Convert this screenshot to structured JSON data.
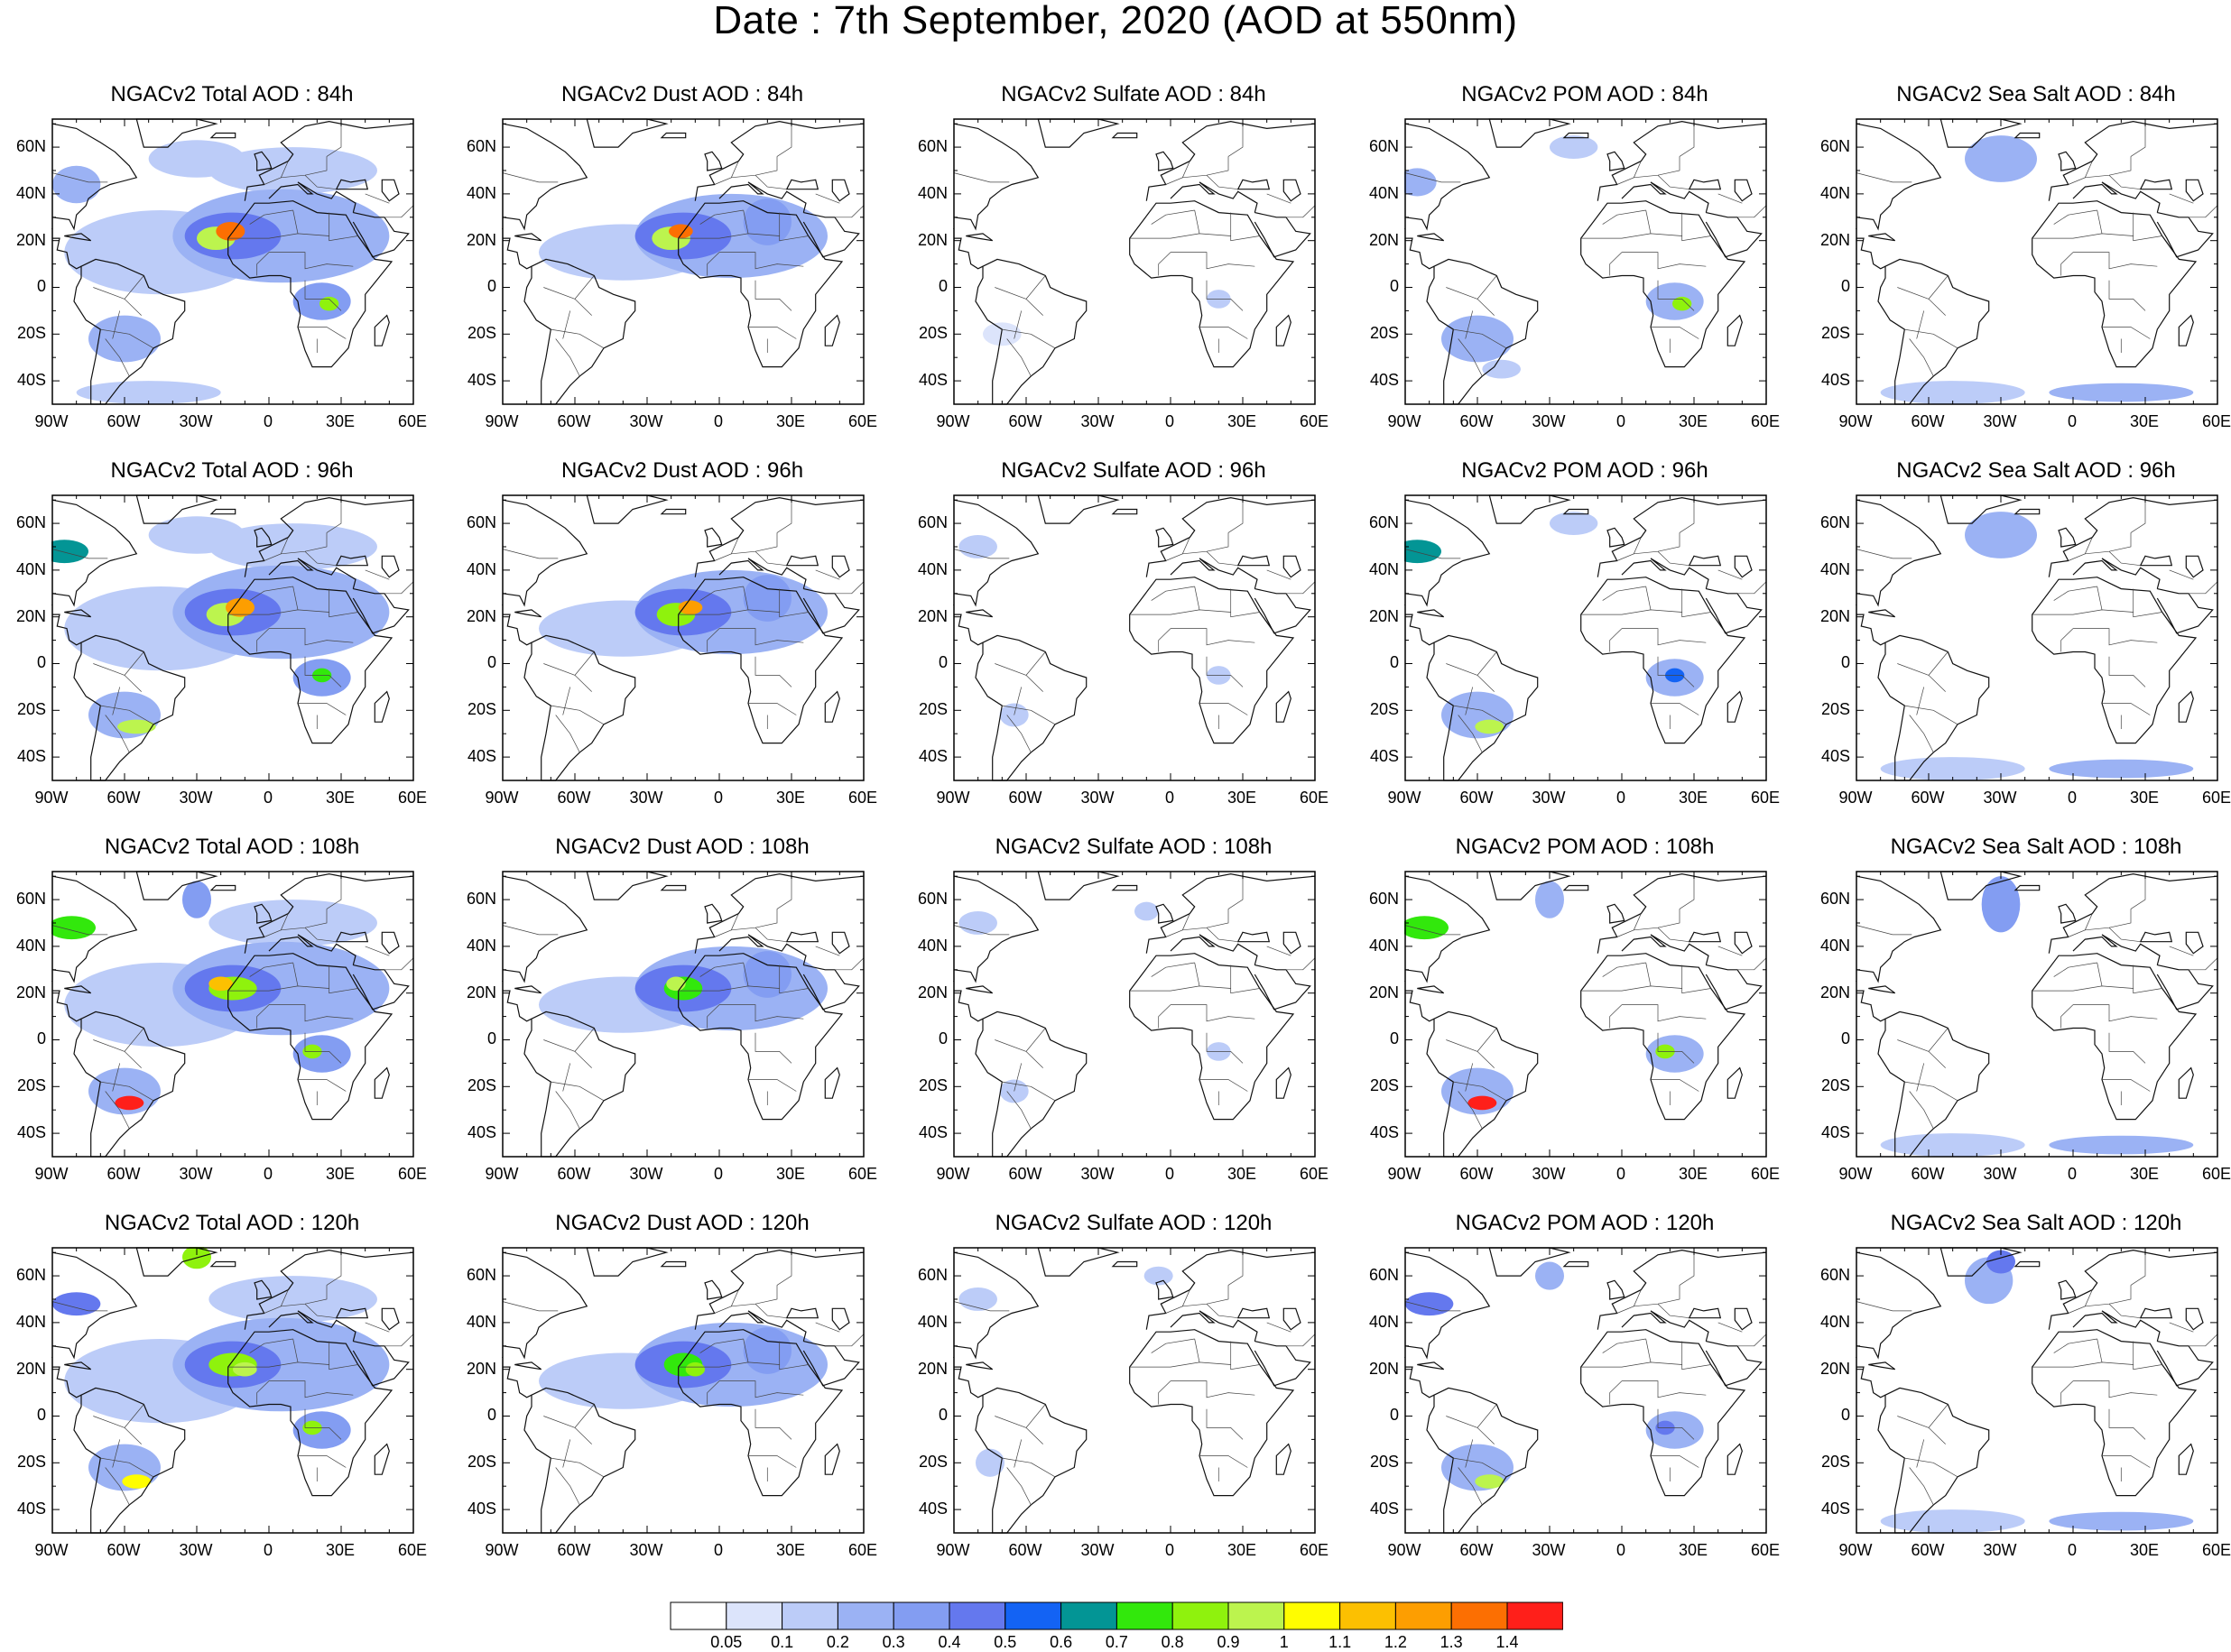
{
  "title": "Date : 7th September, 2020 (AOD at 550nm)",
  "panel_titles": [
    [
      "NGACv2 Total AOD : 84h",
      "NGACv2 Dust AOD : 84h",
      "NGACv2 Sulfate AOD : 84h",
      "NGACv2 POM AOD : 84h",
      "NGACv2 Sea Salt AOD : 84h"
    ],
    [
      "NGACv2 Total AOD : 96h",
      "NGACv2 Dust AOD : 96h",
      "NGACv2 Sulfate AOD : 96h",
      "NGACv2 POM AOD : 96h",
      "NGACv2 Sea Salt AOD : 96h"
    ],
    [
      "NGACv2 Total AOD : 108h",
      "NGACv2 Dust AOD : 108h",
      "NGACv2 Sulfate AOD : 108h",
      "NGACv2 POM AOD : 108h",
      "NGACv2 Sea Salt AOD : 108h"
    ],
    [
      "NGACv2 Total AOD : 120h",
      "NGACv2 Dust AOD : 120h",
      "NGACv2 Sulfate AOD : 120h",
      "NGACv2 POM AOD : 120h",
      "NGACv2 Sea Salt  AOD : 120h"
    ]
  ],
  "lat_ticks": [
    "60N",
    "40N",
    "20N",
    "0",
    "20S",
    "40S"
  ],
  "lon_ticks": [
    "90W",
    "60W",
    "30W",
    "0",
    "30E",
    "60E"
  ],
  "colorbar": {
    "labels": [
      "0.05",
      "0.1",
      "0.2",
      "0.3",
      "0.4",
      "0.5",
      "0.6",
      "0.7",
      "0.8",
      "0.9",
      "1",
      "1.1",
      "1.2",
      "1.3",
      "1.4"
    ],
    "colors": [
      "#ffffff",
      "#dce4fb",
      "#bcccf8",
      "#9bb2f4",
      "#839df2",
      "#6478ee",
      "#1363f4",
      "#039595",
      "#32e80c",
      "#8ff20d",
      "#bcf44e",
      "#fffd00",
      "#fcc001",
      "#fd9e01",
      "#fc6f02",
      "#ff1f1a"
    ]
  },
  "map": {
    "extent_lon": [
      -90,
      60
    ],
    "extent_lat": [
      -50,
      72
    ],
    "plumes": {
      "total": {
        "84h": [
          [
            -45,
            15,
            40,
            18,
            0.12
          ],
          [
            5,
            22,
            45,
            20,
            0.22
          ],
          [
            -15,
            22,
            20,
            10,
            0.45
          ],
          [
            -22,
            21,
            8,
            5,
            0.9
          ],
          [
            -16,
            24,
            6,
            4,
            1.3
          ],
          [
            22,
            -6,
            12,
            8,
            0.35
          ],
          [
            25,
            -7,
            4,
            3,
            0.85
          ],
          [
            -60,
            -22,
            15,
            10,
            0.2
          ],
          [
            -50,
            -45,
            30,
            5,
            0.12
          ],
          [
            10,
            50,
            35,
            10,
            0.15
          ],
          [
            -30,
            55,
            20,
            8,
            0.12
          ],
          [
            -80,
            44,
            10,
            8,
            0.2
          ]
        ],
        "96h": [
          [
            -45,
            15,
            40,
            18,
            0.12
          ],
          [
            5,
            22,
            45,
            20,
            0.22
          ],
          [
            -15,
            22,
            20,
            10,
            0.45
          ],
          [
            -18,
            21,
            8,
            5,
            0.9
          ],
          [
            -12,
            24,
            6,
            4,
            1.2
          ],
          [
            22,
            -6,
            12,
            8,
            0.35
          ],
          [
            22,
            -5,
            4,
            3,
            0.7
          ],
          [
            -60,
            -22,
            15,
            10,
            0.2
          ],
          [
            -55,
            -27,
            8,
            3,
            0.9
          ],
          [
            -85,
            48,
            10,
            5,
            0.6
          ],
          [
            10,
            50,
            35,
            10,
            0.15
          ],
          [
            -30,
            55,
            20,
            8,
            0.12
          ]
        ],
        "108h": [
          [
            -45,
            15,
            40,
            18,
            0.15
          ],
          [
            5,
            22,
            45,
            20,
            0.22
          ],
          [
            -15,
            22,
            20,
            10,
            0.45
          ],
          [
            -15,
            22,
            10,
            5,
            0.85
          ],
          [
            -20,
            24,
            5,
            3,
            1.1
          ],
          [
            22,
            -6,
            12,
            8,
            0.35
          ],
          [
            18,
            -5,
            4,
            3,
            0.85
          ],
          [
            -60,
            -22,
            15,
            10,
            0.25
          ],
          [
            -58,
            -27,
            6,
            3,
            1.4
          ],
          [
            -82,
            48,
            10,
            5,
            0.7
          ],
          [
            -30,
            60,
            6,
            8,
            0.3
          ],
          [
            10,
            50,
            35,
            10,
            0.15
          ]
        ],
        "120h": [
          [
            -45,
            15,
            40,
            18,
            0.15
          ],
          [
            5,
            22,
            45,
            20,
            0.22
          ],
          [
            -15,
            22,
            20,
            10,
            0.45
          ],
          [
            -15,
            22,
            10,
            5,
            0.85
          ],
          [
            -10,
            20,
            5,
            3,
            0.9
          ],
          [
            22,
            -6,
            12,
            8,
            0.35
          ],
          [
            18,
            -5,
            4,
            3,
            0.85
          ],
          [
            -60,
            -22,
            15,
            10,
            0.25
          ],
          [
            -55,
            -28,
            6,
            3,
            1.0
          ],
          [
            -80,
            48,
            10,
            5,
            0.4
          ],
          [
            -30,
            68,
            6,
            5,
            0.8
          ],
          [
            10,
            50,
            35,
            10,
            0.15
          ]
        ]
      },
      "dust": {
        "84h": [
          [
            -40,
            15,
            35,
            12,
            0.12
          ],
          [
            5,
            22,
            40,
            18,
            0.2
          ],
          [
            -15,
            22,
            20,
            10,
            0.45
          ],
          [
            -20,
            21,
            8,
            5,
            0.9
          ],
          [
            -16,
            24,
            5,
            3,
            1.3
          ],
          [
            20,
            28,
            10,
            10,
            0.3
          ]
        ],
        "96h": [
          [
            -40,
            15,
            35,
            12,
            0.12
          ],
          [
            5,
            22,
            40,
            18,
            0.2
          ],
          [
            -15,
            22,
            20,
            10,
            0.45
          ],
          [
            -18,
            21,
            8,
            5,
            0.85
          ],
          [
            -12,
            24,
            5,
            3,
            1.2
          ],
          [
            20,
            28,
            10,
            10,
            0.3
          ]
        ],
        "108h": [
          [
            -40,
            15,
            35,
            12,
            0.12
          ],
          [
            5,
            22,
            40,
            18,
            0.2
          ],
          [
            -15,
            22,
            20,
            10,
            0.45
          ],
          [
            -15,
            22,
            8,
            5,
            0.7
          ],
          [
            -18,
            24,
            4,
            3,
            0.9
          ],
          [
            20,
            28,
            10,
            10,
            0.3
          ]
        ],
        "120h": [
          [
            -40,
            15,
            35,
            12,
            0.12
          ],
          [
            5,
            22,
            40,
            18,
            0.2
          ],
          [
            -15,
            22,
            20,
            10,
            0.45
          ],
          [
            -15,
            22,
            8,
            5,
            0.7
          ],
          [
            -10,
            20,
            4,
            3,
            0.85
          ],
          [
            20,
            28,
            10,
            10,
            0.3
          ]
        ]
      },
      "sulfate": {
        "84h": [
          [
            20,
            -5,
            5,
            4,
            0.12
          ],
          [
            -70,
            -20,
            8,
            5,
            0.08
          ]
        ],
        "96h": [
          [
            -80,
            50,
            8,
            5,
            0.12
          ],
          [
            20,
            -5,
            5,
            4,
            0.1
          ],
          [
            -65,
            -22,
            6,
            5,
            0.1
          ]
        ],
        "108h": [
          [
            -80,
            50,
            8,
            5,
            0.12
          ],
          [
            20,
            -5,
            5,
            4,
            0.1
          ],
          [
            -65,
            -22,
            6,
            5,
            0.12
          ],
          [
            -10,
            55,
            5,
            4,
            0.1
          ]
        ],
        "120h": [
          [
            -80,
            50,
            8,
            5,
            0.12
          ],
          [
            -75,
            -20,
            6,
            6,
            0.12
          ],
          [
            -5,
            60,
            6,
            4,
            0.1
          ]
        ]
      },
      "pom": {
        "84h": [
          [
            22,
            -6,
            12,
            8,
            0.25
          ],
          [
            25,
            -7,
            4,
            3,
            0.8
          ],
          [
            -60,
            -22,
            15,
            10,
            0.22
          ],
          [
            -50,
            -35,
            8,
            4,
            0.15
          ],
          [
            -85,
            45,
            8,
            6,
            0.2
          ],
          [
            -20,
            60,
            10,
            5,
            0.1
          ]
        ],
        "96h": [
          [
            22,
            -6,
            12,
            8,
            0.25
          ],
          [
            22,
            -5,
            4,
            3,
            0.5
          ],
          [
            -60,
            -22,
            15,
            10,
            0.22
          ],
          [
            -55,
            -27,
            6,
            3,
            0.9
          ],
          [
            -85,
            48,
            10,
            5,
            0.6
          ],
          [
            -20,
            60,
            10,
            5,
            0.1
          ]
        ],
        "108h": [
          [
            22,
            -6,
            12,
            8,
            0.25
          ],
          [
            18,
            -5,
            4,
            3,
            0.85
          ],
          [
            -60,
            -22,
            15,
            10,
            0.25
          ],
          [
            -58,
            -27,
            6,
            3,
            1.4
          ],
          [
            -82,
            48,
            10,
            5,
            0.7
          ],
          [
            -30,
            60,
            6,
            8,
            0.2
          ]
        ],
        "120h": [
          [
            22,
            -6,
            12,
            8,
            0.25
          ],
          [
            18,
            -5,
            4,
            3,
            0.45
          ],
          [
            -60,
            -22,
            15,
            10,
            0.25
          ],
          [
            -55,
            -28,
            6,
            3,
            0.9
          ],
          [
            -80,
            48,
            10,
            5,
            0.4
          ],
          [
            -30,
            60,
            6,
            6,
            0.2
          ]
        ]
      },
      "seasalt": {
        "84h": [
          [
            -30,
            55,
            15,
            10,
            0.2
          ],
          [
            -50,
            -45,
            30,
            5,
            0.15
          ],
          [
            20,
            -45,
            30,
            4,
            0.2
          ]
        ],
        "96h": [
          [
            -30,
            55,
            15,
            10,
            0.2
          ],
          [
            -50,
            -45,
            30,
            5,
            0.15
          ],
          [
            20,
            -45,
            30,
            4,
            0.2
          ]
        ],
        "108h": [
          [
            -30,
            58,
            8,
            12,
            0.3
          ],
          [
            -50,
            -45,
            30,
            5,
            0.15
          ],
          [
            20,
            -45,
            30,
            4,
            0.2
          ]
        ],
        "120h": [
          [
            -30,
            66,
            6,
            5,
            0.45
          ],
          [
            -35,
            58,
            10,
            10,
            0.2
          ],
          [
            -50,
            -45,
            30,
            5,
            0.15
          ],
          [
            20,
            -45,
            30,
            4,
            0.2
          ]
        ]
      }
    }
  }
}
